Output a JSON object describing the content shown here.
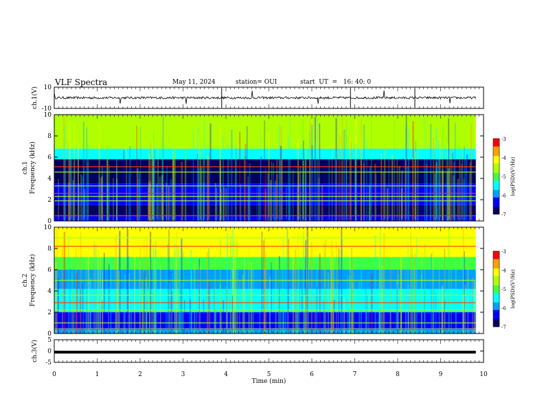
{
  "header": {
    "title": "VLF Spectra",
    "date": "May 11, 2024",
    "station": "station= OUI",
    "start": "start  UT  =   16: 40: 0"
  },
  "colors": {
    "colormap": [
      "#000060",
      "#0000ff",
      "#00a0ff",
      "#00ffff",
      "#40ff40",
      "#b0ff00",
      "#ffff00",
      "#ffa000",
      "#ff0000",
      "#ffffff"
    ],
    "trace": "#000000"
  },
  "chart_data": [
    {
      "type": "line",
      "title": "",
      "xlabel": "",
      "ylabel": "ch.1(V)",
      "xlim": [
        0,
        10
      ],
      "ylim": [
        -10,
        10
      ],
      "yticks": [
        "10",
        "-10"
      ],
      "x_extent": [
        0,
        9.82
      ],
      "series": [
        {
          "values_summary": "noisy waveform centred at 0 V, amplitude about ±1 V with spikes near 3.9, 6.9, 8.4 min"
        }
      ]
    },
    {
      "type": "heatmap",
      "ylabel": "ch.1  Frequency (kHz)",
      "xlim": [
        0,
        10
      ],
      "ylim": [
        0,
        10
      ],
      "yticks": [
        "0",
        "2",
        "4",
        "6",
        "8",
        "10"
      ],
      "x_extent": [
        0,
        9.82
      ],
      "colorbar": {
        "label": "log(PSD)(V²/Hz)",
        "range": [
          -7,
          -3
        ],
        "ticks": [
          "-3",
          "-4",
          "-5",
          "-6",
          "-7"
        ]
      },
      "bands_khz": [
        {
          "from": 0.0,
          "to": 0.5,
          "level": -6.3
        },
        {
          "from": 0.5,
          "to": 1.5,
          "level": -6.6
        },
        {
          "from": 1.5,
          "to": 3.5,
          "level": -6.2
        },
        {
          "from": 3.5,
          "to": 5.8,
          "level": -6.8
        },
        {
          "from": 5.8,
          "to": 6.8,
          "level": -5.6
        },
        {
          "from": 6.8,
          "to": 10.0,
          "level": -4.7
        }
      ],
      "lines_khz": [
        0.5,
        1.9,
        2.3,
        2.6,
        3.3,
        4.6,
        5.1
      ]
    },
    {
      "type": "heatmap",
      "ylabel": "ch.2  Frequency (kHz)",
      "xlim": [
        0,
        10
      ],
      "ylim": [
        0,
        10
      ],
      "yticks": [
        "0",
        "2",
        "4",
        "6",
        "8",
        "10"
      ],
      "x_extent": [
        0,
        9.82
      ],
      "colorbar": {
        "label": "log(PSD)(V²/Hz)",
        "range": [
          -7,
          -3
        ],
        "ticks": [
          "-3",
          "-4",
          "-5",
          "-6",
          "-7"
        ]
      },
      "bands_khz": [
        {
          "from": 0.0,
          "to": 0.5,
          "level": -6.0
        },
        {
          "from": 0.5,
          "to": 2.0,
          "level": -6.3
        },
        {
          "from": 2.0,
          "to": 4.2,
          "level": -5.6
        },
        {
          "from": 4.2,
          "to": 6.0,
          "level": -6.1
        },
        {
          "from": 6.0,
          "to": 7.2,
          "level": -5.0
        },
        {
          "from": 7.2,
          "to": 10.0,
          "level": -3.9
        }
      ],
      "lines_khz": [
        0.4,
        1.0,
        2.2,
        2.9,
        3.6,
        5.0,
        8.2,
        9.0
      ]
    },
    {
      "type": "line",
      "ylabel": "ch.3(V)",
      "xlabel": "Time  (min)",
      "xlim": [
        0,
        10
      ],
      "ylim": [
        -5,
        5
      ],
      "yticks": [
        "5",
        "0",
        "-5"
      ],
      "xticks": [
        "0",
        "1",
        "2",
        "3",
        "4",
        "5",
        "6",
        "7",
        "8",
        "9",
        "10"
      ],
      "x_extent": [
        0,
        9.82
      ],
      "series": [
        {
          "values_summary": "flat thick trace at about -0.5 V"
        }
      ]
    }
  ]
}
